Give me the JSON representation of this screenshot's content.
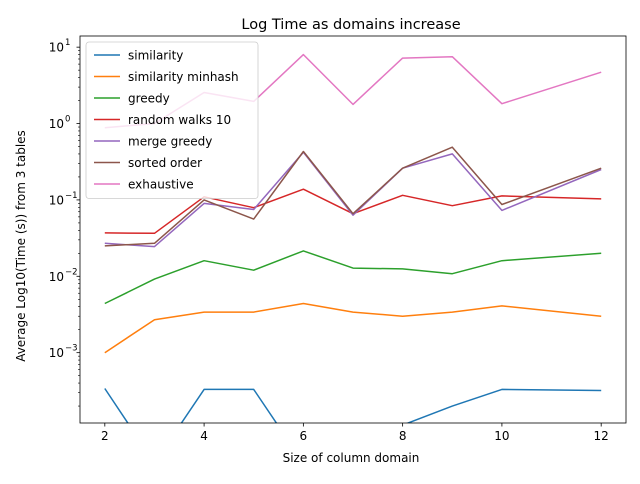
{
  "chart_data": {
    "type": "line",
    "title": "Log Time as domains increase",
    "xlabel": "Size of column domain",
    "ylabel": "Average Log10(Time (s)) from 3 tables",
    "yscale": "log",
    "xlim": [
      1.5,
      12.5
    ],
    "ylim": [
      0.00012,
      14
    ],
    "x_ticks": [
      2,
      4,
      6,
      8,
      10,
      12
    ],
    "y_ticks": [
      {
        "value": 0.001,
        "label": "10"
      },
      {
        "value": 0.01,
        "label": "10"
      },
      {
        "value": 0.1,
        "label": "10"
      },
      {
        "value": 1,
        "label": "10"
      },
      {
        "value": 10,
        "label": "10"
      }
    ],
    "y_tick_exponents": [
      "−3",
      "−2",
      "−1",
      "0",
      "1"
    ],
    "grid": false,
    "legend_position": "upper-left",
    "x": [
      2,
      3,
      4,
      5,
      6,
      7,
      8,
      9,
      10,
      11,
      12
    ],
    "series": [
      {
        "name": "similarity",
        "color": "#1f77b4",
        "values": [
          0.00034,
          0,
          0.00033,
          0.00033,
          0,
          null,
          null,
          0.0002,
          0.00033,
          null,
          0.00032
        ]
      },
      {
        "name": "similarity minhash",
        "color": "#ff7f0e",
        "values": [
          0.001,
          0.0027,
          0.0034,
          0.0034,
          0.0044,
          0.0034,
          0.003,
          0.0034,
          0.0041,
          null,
          0.003
        ]
      },
      {
        "name": "greedy",
        "color": "#2ca02c",
        "values": [
          0.0044,
          0.0092,
          0.016,
          0.012,
          0.0215,
          0.0128,
          0.0125,
          0.0108,
          0.016,
          null,
          0.02
        ]
      },
      {
        "name": "random walks 10",
        "color": "#d62728",
        "values": [
          0.037,
          0.0365,
          0.11,
          0.079,
          0.138,
          0.066,
          0.115,
          0.084,
          0.113,
          null,
          0.103
        ]
      },
      {
        "name": "merge greedy",
        "color": "#9467bd",
        "values": [
          0.027,
          0.0245,
          0.09,
          0.075,
          0.42,
          0.063,
          0.26,
          0.4,
          0.073,
          null,
          0.25
        ]
      },
      {
        "name": "sorted order",
        "color": "#8c564b",
        "values": [
          0.025,
          0.027,
          0.1,
          0.056,
          0.43,
          0.066,
          0.26,
          0.49,
          0.087,
          null,
          0.26
        ]
      },
      {
        "name": "exhaustive",
        "color": "#e377c2",
        "values": [
          0.88,
          1.0,
          2.55,
          1.95,
          8.0,
          1.78,
          7.2,
          7.5,
          1.82,
          null,
          4.7
        ]
      }
    ]
  }
}
